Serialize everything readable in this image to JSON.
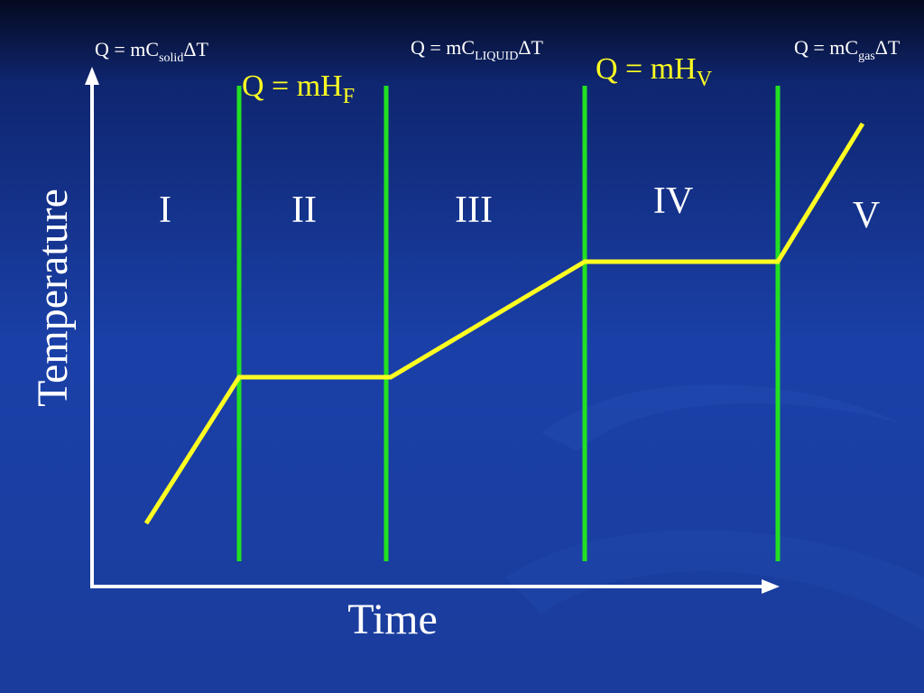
{
  "axes": {
    "x_label": "Time",
    "y_label": "Temperature"
  },
  "formulas": [
    {
      "main": "Q = mC",
      "sub": "solid",
      "tail": "ΔT"
    },
    {
      "main": "Q = mC",
      "sub": "LIQUID",
      "tail": "ΔT"
    },
    {
      "main": "Q = mC",
      "sub": "gas",
      "tail": "ΔT"
    },
    {
      "main": "Q = mH",
      "sub": "F"
    },
    {
      "main": "Q = mH",
      "sub": "V"
    }
  ],
  "regions": [
    "I",
    "II",
    "III",
    "IV",
    "V"
  ]
}
